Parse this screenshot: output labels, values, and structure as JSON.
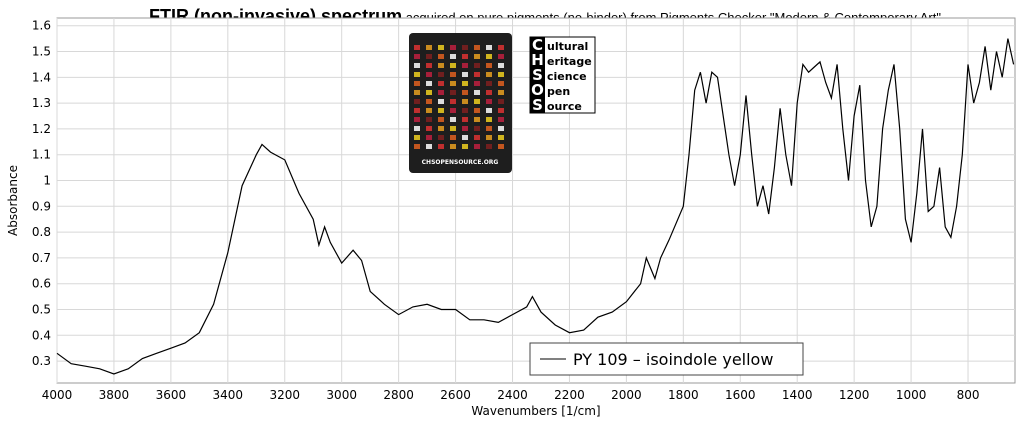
{
  "chart_data": {
    "type": "line",
    "title": {
      "bold": "FTIR (non-invasive) spectrum",
      "part1": " acquired on ",
      "underlined": "pure",
      "part2": " pigments (no-binder) from Pigments Checker \"Modern & Contemporary Art\""
    },
    "x_label": "Wavenumbers [1/cm]",
    "y_label": "Absorbance",
    "x": [
      4000,
      3950,
      3900,
      3850,
      3800,
      3750,
      3700,
      3650,
      3600,
      3550,
      3500,
      3450,
      3400,
      3350,
      3300,
      3280,
      3250,
      3200,
      3150,
      3100,
      3080,
      3060,
      3040,
      3000,
      2960,
      2930,
      2900,
      2850,
      2800,
      2750,
      2700,
      2650,
      2600,
      2550,
      2500,
      2450,
      2400,
      2350,
      2330,
      2300,
      2250,
      2200,
      2150,
      2100,
      2050,
      2000,
      1950,
      1930,
      1900,
      1880,
      1850,
      1800,
      1780,
      1760,
      1740,
      1720,
      1700,
      1680,
      1660,
      1640,
      1620,
      1600,
      1580,
      1560,
      1540,
      1520,
      1500,
      1480,
      1460,
      1440,
      1420,
      1400,
      1380,
      1360,
      1340,
      1320,
      1300,
      1280,
      1260,
      1240,
      1220,
      1200,
      1180,
      1160,
      1140,
      1120,
      1100,
      1080,
      1060,
      1040,
      1020,
      1000,
      980,
      960,
      940,
      920,
      900,
      880,
      860,
      840,
      820,
      800,
      780,
      760,
      740,
      720,
      700,
      680,
      660,
      640
    ],
    "series": [
      {
        "name": "PY 109 – isoindole yellow",
        "color": "#000000",
        "values": [
          0.33,
          0.29,
          0.28,
          0.27,
          0.25,
          0.27,
          0.31,
          0.33,
          0.35,
          0.37,
          0.41,
          0.52,
          0.72,
          0.98,
          1.1,
          1.14,
          1.11,
          1.08,
          0.95,
          0.85,
          0.75,
          0.82,
          0.76,
          0.68,
          0.73,
          0.69,
          0.57,
          0.52,
          0.48,
          0.51,
          0.52,
          0.5,
          0.5,
          0.46,
          0.46,
          0.45,
          0.48,
          0.51,
          0.55,
          0.49,
          0.44,
          0.41,
          0.42,
          0.47,
          0.49,
          0.53,
          0.6,
          0.7,
          0.62,
          0.7,
          0.77,
          0.9,
          1.1,
          1.35,
          1.42,
          1.3,
          1.42,
          1.4,
          1.25,
          1.1,
          0.98,
          1.1,
          1.33,
          1.1,
          0.9,
          0.98,
          0.87,
          1.05,
          1.28,
          1.1,
          0.98,
          1.3,
          1.45,
          1.42,
          1.44,
          1.46,
          1.38,
          1.32,
          1.45,
          1.2,
          1.0,
          1.25,
          1.37,
          1.0,
          0.82,
          0.9,
          1.2,
          1.35,
          1.45,
          1.2,
          0.85,
          0.76,
          0.95,
          1.2,
          0.88,
          0.9,
          1.05,
          0.82,
          0.78,
          0.9,
          1.1,
          1.45,
          1.3,
          1.38,
          1.52,
          1.35,
          1.5,
          1.4,
          1.55,
          1.45
        ]
      }
    ],
    "xlim": [
      4000,
      635
    ],
    "ylim": [
      0.215,
      1.63
    ],
    "xticks": [
      4000,
      3800,
      3600,
      3400,
      3200,
      3000,
      2800,
      2600,
      2400,
      2200,
      2000,
      1800,
      1600,
      1400,
      1200,
      1000,
      800
    ],
    "yticks": [
      0.3,
      0.4,
      0.5,
      0.6,
      0.7,
      0.8,
      0.9,
      1,
      1.1,
      1.2,
      1.3,
      1.4,
      1.5,
      1.6
    ],
    "grid": true
  },
  "logo": {
    "letters": [
      "C",
      "H",
      "S",
      "O",
      "S"
    ],
    "words": [
      "ultural",
      "eritage",
      "cience",
      "pen",
      "ource"
    ],
    "card_caption": "CHSOPENSOURCE.ORG"
  }
}
